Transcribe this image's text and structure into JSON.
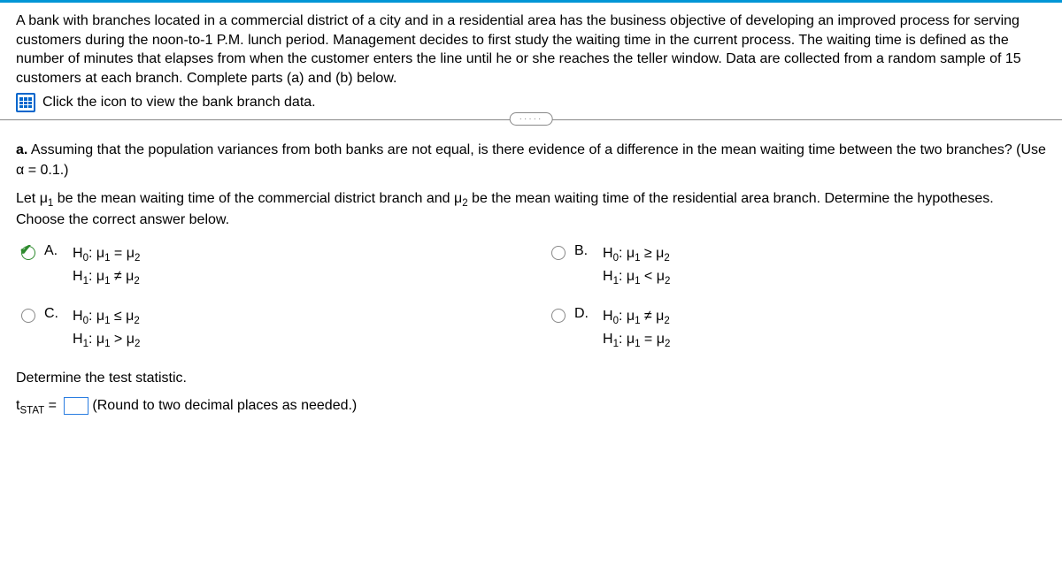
{
  "problem": {
    "intro": "A bank with branches located in a commercial district of a city and in a residential area has the business objective of developing an improved process for serving customers during the noon-to-1 P.M. lunch period. Management decides to first study the waiting time in the current process. The waiting time is defined as the number of minutes that elapses from when the customer enters the line until he or she reaches the teller window. Data are collected from a random sample of 15 customers at each branch. Complete parts (a) and (b) below.",
    "data_link": "Click the icon to view the bank branch data."
  },
  "part_a": {
    "label": "a.",
    "question": "Assuming that the population variances from both banks are not equal, is there evidence of a difference in the mean waiting time between the two branches? (Use α = 0.1.)",
    "define_pre": "Let μ",
    "define_mid1": " be the mean waiting time of the commercial district branch and μ",
    "define_mid2": " be the mean waiting time of the residential area branch. Determine the hypotheses. Choose the correct answer below."
  },
  "choices": {
    "A": {
      "label": "A.",
      "h0": "H",
      "h0_rel": ": μ",
      "h0_tail": " = μ",
      "h1": "H",
      "h1_rel": ": μ",
      "h1_tail": " ≠ μ"
    },
    "B": {
      "label": "B.",
      "h0": "H",
      "h0_rel": ": μ",
      "h0_tail": " ≥ μ",
      "h1": "H",
      "h1_rel": ": μ",
      "h1_tail": " < μ"
    },
    "C": {
      "label": "C.",
      "h0": "H",
      "h0_rel": ": μ",
      "h0_tail": " ≤ μ",
      "h1": "H",
      "h1_rel": ": μ",
      "h1_tail": " > μ"
    },
    "D": {
      "label": "D.",
      "h0": "H",
      "h0_rel": ": μ",
      "h0_tail": " ≠ μ",
      "h1": "H",
      "h1_rel": ": μ",
      "h1_tail": " = μ"
    }
  },
  "selected": "A",
  "test_stat": {
    "prompt": "Determine the test statistic.",
    "lhs_pre": "t",
    "lhs_sub": "STAT",
    "eq": " = ",
    "hint": "(Round to two decimal places as needed.)",
    "value": ""
  }
}
